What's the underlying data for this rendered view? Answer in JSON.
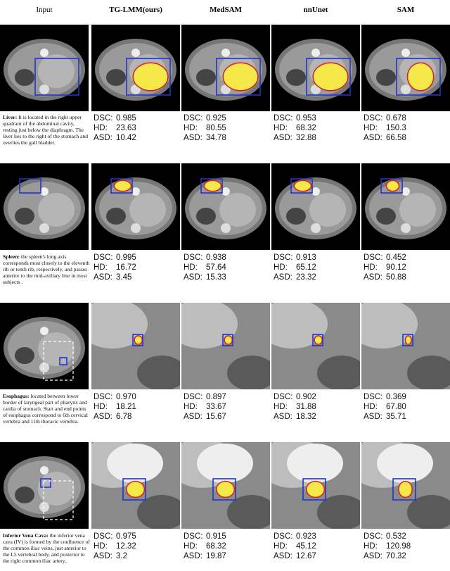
{
  "header": [
    "Input",
    "TG-LMM(ours)",
    "MedSAM",
    "nnUnet",
    "SAM"
  ],
  "metric_labels": [
    "DSC:",
    "HD:",
    "ASD:"
  ],
  "rows": [
    {
      "name": "Liver:",
      "description": "It is located in the right upper quadrant of the abdominal cavity, resting just below the diaphragm. The liver lies to the right of the stomach and overlies the gall bladder.",
      "metrics": [
        [
          "0.985",
          "23.63",
          "10.42"
        ],
        [
          "0.925",
          "80.55",
          "34.78"
        ],
        [
          "0.953",
          "68.32",
          "32.88"
        ],
        [
          "0.678",
          "150.3",
          "66.58"
        ]
      ]
    },
    {
      "name": "Spleen:",
      "description": "the spleen's long axis corresponds most closely to the eleventh rib or tenth rib, respectively, and passes anterior to the mid-axillary line in most subjects .",
      "metrics": [
        [
          "0.995",
          "16.72",
          "3.45"
        ],
        [
          "0.938",
          "57.64",
          "15.33"
        ],
        [
          "0.913",
          "65.12",
          "23.32"
        ],
        [
          "0.452",
          "90.12",
          "50.88"
        ]
      ]
    },
    {
      "name": "Esophagus:",
      "description": "located between lower border of laryngeal part of pharynx and cardia of stomach. Start and end points of esophagus correspond to 6th cervical vertebra and 11th thoracic vertebra.",
      "metrics": [
        [
          "0.970",
          "18.21",
          "6.78"
        ],
        [
          "0.897",
          "33.67",
          "15.67"
        ],
        [
          "0.902",
          "31.88",
          "18.32"
        ],
        [
          "0.369",
          "67.80",
          "35.71"
        ]
      ]
    },
    {
      "name": "Inferior Vena Cava:",
      "description": "the inferior vena cava (IV) is formed by the confluence of the common iliac veins, just anterior to the L5 vertebral body, and posterior to the right common iliac artery..",
      "metrics": [
        [
          "0.975",
          "12.32",
          "3.2"
        ],
        [
          "0.915",
          "68.32",
          "19.87"
        ],
        [
          "0.923",
          "45.12",
          "12.67"
        ],
        [
          "0.532",
          "120.98",
          "70.32"
        ]
      ]
    }
  ]
}
